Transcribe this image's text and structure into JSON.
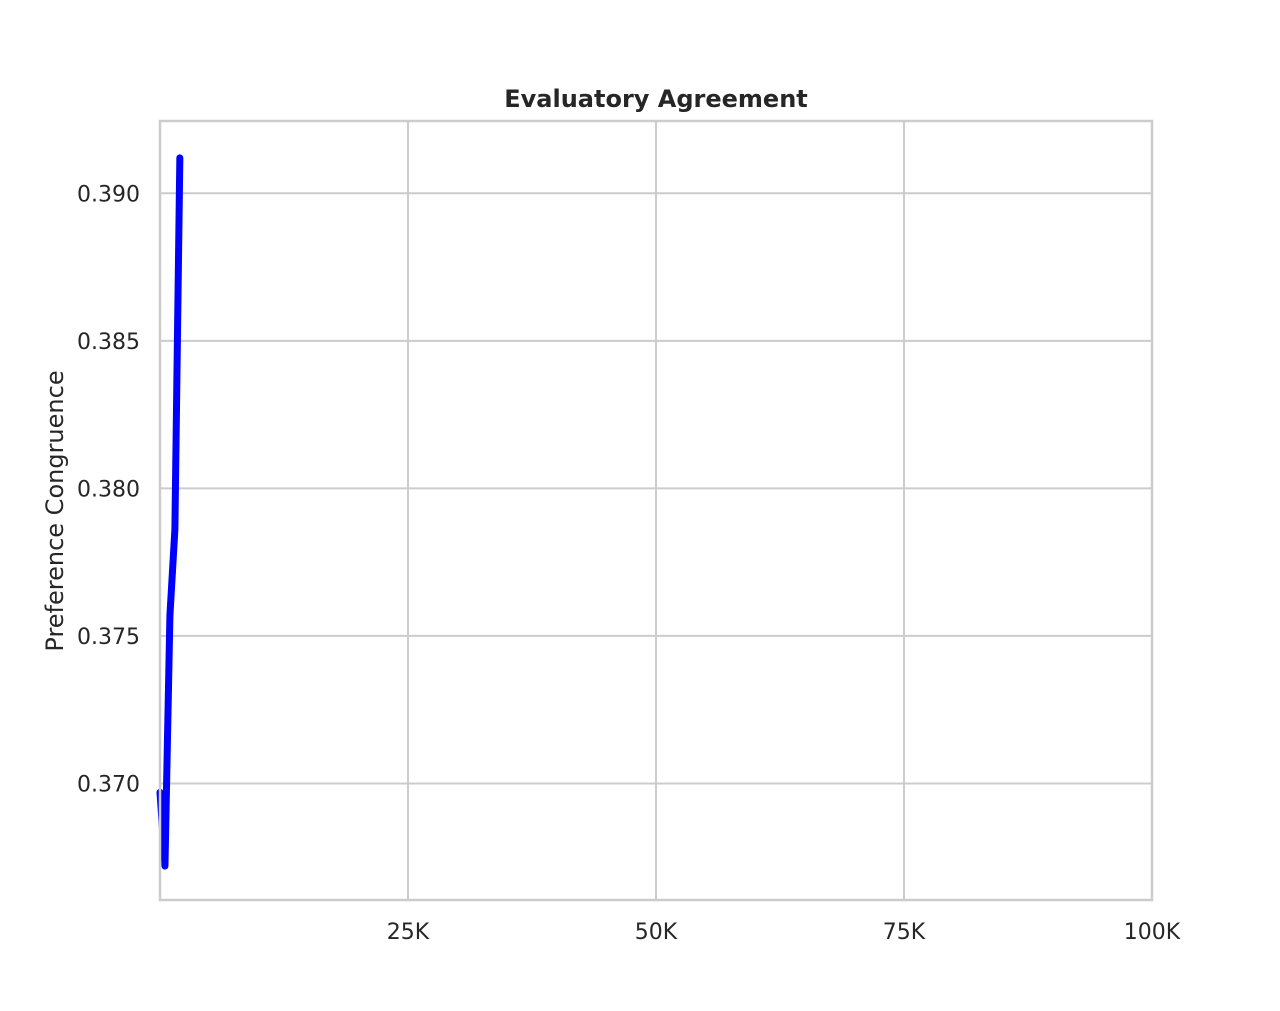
{
  "chart_data": {
    "type": "line",
    "title": "Evaluatory Agreement",
    "xlabel": "",
    "ylabel": "Preference Congruence",
    "xlim": [
      0,
      100000
    ],
    "ylim": [
      0.36605,
      0.39245
    ],
    "x_ticks": [
      {
        "value": 25000,
        "label": "25K"
      },
      {
        "value": 50000,
        "label": "50K"
      },
      {
        "value": 75000,
        "label": "75K"
      },
      {
        "value": 100000,
        "label": "100K"
      }
    ],
    "y_ticks": [
      {
        "value": 0.37,
        "label": "0.370"
      },
      {
        "value": 0.375,
        "label": "0.375"
      },
      {
        "value": 0.38,
        "label": "0.380"
      },
      {
        "value": 0.385,
        "label": "0.385"
      },
      {
        "value": 0.39,
        "label": "0.390"
      }
    ],
    "grid": true,
    "series": [
      {
        "color": "#0000ff",
        "x": [
          0,
          500,
          1000,
          1500,
          2000
        ],
        "y": [
          0.3697,
          0.3672,
          0.3757,
          0.3786,
          0.3912
        ]
      }
    ]
  }
}
